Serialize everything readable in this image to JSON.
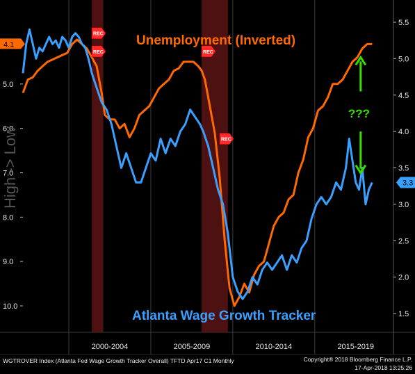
{
  "chart_data": {
    "type": "line",
    "ylabel": "High -> Low",
    "x_categories": [
      "2000-2004",
      "2005-2009",
      "2010-2014",
      "2015-2019"
    ],
    "xlim": [
      1997.0,
      2019.6
    ],
    "left_axis": {
      "ylim": [
        10.5,
        3.5
      ],
      "inverted": true,
      "ticks": [
        "5.0",
        "6.0",
        "7.0",
        "8.0",
        "9.0",
        "10.0"
      ],
      "current_label": "4.1"
    },
    "right_axis": {
      "ylim": [
        1.5,
        5.6
      ],
      "ticks": [
        "1.5",
        "2.0",
        "2.5",
        "3.0",
        "3.5",
        "4.0",
        "4.5",
        "5.0",
        "5.5"
      ],
      "current_label": "3.3"
    },
    "recession_bands": [
      [
        2001.2,
        2001.9
      ],
      [
        2007.9,
        2009.5
      ]
    ],
    "recession_markers": [
      {
        "label": "REC",
        "x": 2001.2,
        "y_right": 5.35
      },
      {
        "label": "REC",
        "x": 2001.2,
        "y_right": 5.1
      },
      {
        "label": "REC",
        "x": 2007.9,
        "y_right": 5.1
      },
      {
        "label": "REC",
        "x": 2009.0,
        "y_right": 3.9
      }
    ],
    "series": [
      {
        "name": "Unemployment (Inverted)",
        "axis": "left",
        "color": "#ff6a00",
        "values": [
          [
            1997.0,
            5.2
          ],
          [
            1997.3,
            4.9
          ],
          [
            1997.6,
            4.85
          ],
          [
            1997.9,
            4.7
          ],
          [
            1998.2,
            4.6
          ],
          [
            1998.5,
            4.5
          ],
          [
            1998.8,
            4.45
          ],
          [
            1999.1,
            4.4
          ],
          [
            1999.4,
            4.35
          ],
          [
            1999.7,
            4.3
          ],
          [
            2000.0,
            4.1
          ],
          [
            2000.3,
            4.0
          ],
          [
            2000.6,
            4.1
          ],
          [
            2000.9,
            4.2
          ],
          [
            2001.2,
            4.4
          ],
          [
            2001.5,
            4.6
          ],
          [
            2001.8,
            5.2
          ],
          [
            2002.0,
            5.7
          ],
          [
            2002.3,
            5.8
          ],
          [
            2002.6,
            5.8
          ],
          [
            2002.9,
            6.0
          ],
          [
            2003.2,
            5.9
          ],
          [
            2003.5,
            6.2
          ],
          [
            2003.8,
            6.0
          ],
          [
            2004.1,
            5.7
          ],
          [
            2004.4,
            5.6
          ],
          [
            2004.7,
            5.5
          ],
          [
            2005.0,
            5.3
          ],
          [
            2005.3,
            5.1
          ],
          [
            2005.6,
            5.0
          ],
          [
            2005.9,
            4.9
          ],
          [
            2006.2,
            4.7
          ],
          [
            2006.5,
            4.65
          ],
          [
            2006.8,
            4.5
          ],
          [
            2007.1,
            4.5
          ],
          [
            2007.4,
            4.5
          ],
          [
            2007.7,
            4.6
          ],
          [
            2007.9,
            4.7
          ],
          [
            2008.1,
            4.9
          ],
          [
            2008.4,
            5.5
          ],
          [
            2008.7,
            6.1
          ],
          [
            2009.0,
            7.1
          ],
          [
            2009.3,
            8.5
          ],
          [
            2009.6,
            9.6
          ],
          [
            2009.9,
            10.0
          ],
          [
            2010.2,
            9.8
          ],
          [
            2010.5,
            9.5
          ],
          [
            2010.8,
            9.7
          ],
          [
            2011.1,
            9.3
          ],
          [
            2011.4,
            9.1
          ],
          [
            2011.7,
            9.0
          ],
          [
            2012.0,
            8.6
          ],
          [
            2012.3,
            8.2
          ],
          [
            2012.6,
            8.0
          ],
          [
            2012.9,
            7.9
          ],
          [
            2013.2,
            7.6
          ],
          [
            2013.5,
            7.5
          ],
          [
            2013.8,
            7.0
          ],
          [
            2014.1,
            6.7
          ],
          [
            2014.4,
            6.2
          ],
          [
            2014.7,
            6.0
          ],
          [
            2015.0,
            5.6
          ],
          [
            2015.3,
            5.5
          ],
          [
            2015.6,
            5.3
          ],
          [
            2015.9,
            5.0
          ],
          [
            2016.2,
            5.0
          ],
          [
            2016.5,
            4.9
          ],
          [
            2016.8,
            4.7
          ],
          [
            2017.1,
            4.5
          ],
          [
            2017.4,
            4.4
          ],
          [
            2017.7,
            4.2
          ],
          [
            2018.0,
            4.1
          ],
          [
            2018.3,
            4.1
          ]
        ]
      },
      {
        "name": "Atlanta Wage Growth Tracker",
        "axis": "right",
        "color": "#3aa0ff",
        "values": [
          [
            1997.0,
            4.8
          ],
          [
            1997.2,
            5.2
          ],
          [
            1997.4,
            5.4
          ],
          [
            1997.6,
            5.2
          ],
          [
            1997.8,
            5.0
          ],
          [
            1998.0,
            5.15
          ],
          [
            1998.2,
            5.1
          ],
          [
            1998.4,
            5.2
          ],
          [
            1998.6,
            5.3
          ],
          [
            1998.8,
            5.2
          ],
          [
            1999.0,
            5.25
          ],
          [
            1999.2,
            5.15
          ],
          [
            1999.4,
            5.3
          ],
          [
            1999.6,
            5.25
          ],
          [
            1999.8,
            5.15
          ],
          [
            2000.0,
            5.3
          ],
          [
            2000.2,
            5.35
          ],
          [
            2000.4,
            5.3
          ],
          [
            2000.6,
            5.2
          ],
          [
            2000.8,
            5.15
          ],
          [
            2001.0,
            5.0
          ],
          [
            2001.2,
            4.8
          ],
          [
            2001.5,
            4.6
          ],
          [
            2001.8,
            4.4
          ],
          [
            2002.1,
            4.3
          ],
          [
            2002.4,
            4.1
          ],
          [
            2002.7,
            3.8
          ],
          [
            2003.0,
            3.5
          ],
          [
            2003.3,
            3.7
          ],
          [
            2003.6,
            3.5
          ],
          [
            2003.9,
            3.3
          ],
          [
            2004.2,
            3.3
          ],
          [
            2004.5,
            3.5
          ],
          [
            2004.8,
            3.7
          ],
          [
            2005.1,
            3.6
          ],
          [
            2005.4,
            3.9
          ],
          [
            2005.7,
            3.7
          ],
          [
            2006.0,
            3.9
          ],
          [
            2006.3,
            3.8
          ],
          [
            2006.6,
            4.0
          ],
          [
            2006.9,
            4.1
          ],
          [
            2007.2,
            4.3
          ],
          [
            2007.5,
            4.2
          ],
          [
            2007.8,
            4.1
          ],
          [
            2008.0,
            4.0
          ],
          [
            2008.3,
            3.8
          ],
          [
            2008.6,
            3.5
          ],
          [
            2008.9,
            3.2
          ],
          [
            2009.2,
            3.0
          ],
          [
            2009.5,
            2.6
          ],
          [
            2009.8,
            2.0
          ],
          [
            2010.1,
            1.8
          ],
          [
            2010.4,
            1.7
          ],
          [
            2010.7,
            1.8
          ],
          [
            2011.0,
            2.0
          ],
          [
            2011.3,
            1.9
          ],
          [
            2011.6,
            2.1
          ],
          [
            2011.9,
            2.2
          ],
          [
            2012.2,
            2.1
          ],
          [
            2012.5,
            2.2
          ],
          [
            2012.8,
            2.3
          ],
          [
            2013.1,
            2.1
          ],
          [
            2013.4,
            2.3
          ],
          [
            2013.7,
            2.2
          ],
          [
            2014.0,
            2.4
          ],
          [
            2014.3,
            2.5
          ],
          [
            2014.6,
            2.8
          ],
          [
            2014.9,
            3.0
          ],
          [
            2015.2,
            3.1
          ],
          [
            2015.5,
            3.0
          ],
          [
            2015.8,
            3.1
          ],
          [
            2016.1,
            3.3
          ],
          [
            2016.4,
            3.2
          ],
          [
            2016.7,
            3.5
          ],
          [
            2016.9,
            3.9
          ],
          [
            2017.1,
            3.6
          ],
          [
            2017.3,
            3.3
          ],
          [
            2017.5,
            3.2
          ],
          [
            2017.7,
            3.5
          ],
          [
            2017.9,
            3.0
          ],
          [
            2018.1,
            3.2
          ],
          [
            2018.3,
            3.3
          ]
        ]
      }
    ],
    "annotations": {
      "unemployment_title": "Unemployment (Inverted)",
      "wage_title": "Atlanta Wage Growth Tracker",
      "question": "???",
      "arrow_color": "#39e000",
      "arrow_up": {
        "x": 2017.6,
        "y_right_from": 4.55,
        "y_right_to": 5.0
      },
      "arrow_down": {
        "x": 2017.6,
        "y_right_from": 4.0,
        "y_right_to": 3.45
      },
      "question_pos": {
        "x": 2017.5,
        "y_right": 4.25
      }
    }
  },
  "footer": {
    "left_text": "WGTROVER Index (Atlanta Fed Wage Growth Tracker Overall) TFTD Apr17 C1  Monthly",
    "right_line1": "Copyright® 2018 Bloomberg Finance L.P.",
    "right_line2": "17-Apr-2018 13:25:26"
  }
}
